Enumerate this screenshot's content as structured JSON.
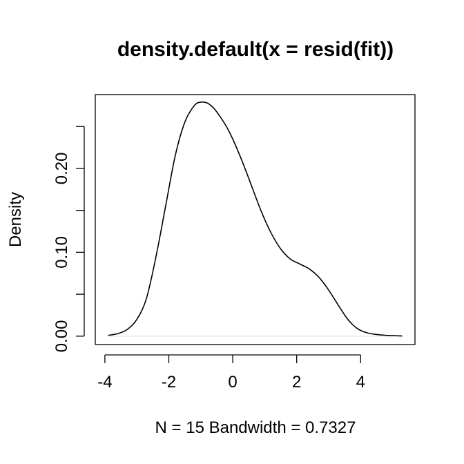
{
  "chart_data": {
    "type": "line",
    "title": "density.default(x = resid(fit))",
    "xlabel": "N = 15   Bandwidth = 0.7327",
    "ylabel": "Density",
    "xlim": [
      -4.3,
      5.7
    ],
    "ylim": [
      -0.01,
      0.288
    ],
    "x_ticks": [
      -4,
      -2,
      0,
      2,
      4
    ],
    "x_tick_labels": [
      "-4",
      "-2",
      "0",
      "2",
      "4"
    ],
    "y_ticks": [
      0,
      0.05,
      0.1,
      0.15,
      0.2,
      0.25
    ],
    "y_tick_labels": [
      "0.00",
      "",
      "0.10",
      "",
      "0.20",
      ""
    ],
    "grid": false,
    "series": [
      {
        "x": [
          -3.9,
          -3.6,
          -3.3,
          -3.0,
          -2.7,
          -2.4,
          -2.1,
          -1.8,
          -1.5,
          -1.2,
          -1.0,
          -0.8,
          -0.6,
          -0.4,
          -0.2,
          0.0,
          0.3,
          0.6,
          0.9,
          1.2,
          1.5,
          1.8,
          2.1,
          2.4,
          2.7,
          3.0,
          3.3,
          3.6,
          3.9,
          4.2,
          4.5,
          4.8,
          5.1,
          5.3
        ],
        "y": [
          0.001,
          0.003,
          0.008,
          0.02,
          0.045,
          0.095,
          0.155,
          0.215,
          0.255,
          0.275,
          0.279,
          0.278,
          0.272,
          0.262,
          0.25,
          0.235,
          0.208,
          0.178,
          0.148,
          0.123,
          0.104,
          0.092,
          0.086,
          0.08,
          0.07,
          0.055,
          0.037,
          0.02,
          0.009,
          0.004,
          0.002,
          0.001,
          0.0005,
          0.0002
        ]
      }
    ]
  }
}
